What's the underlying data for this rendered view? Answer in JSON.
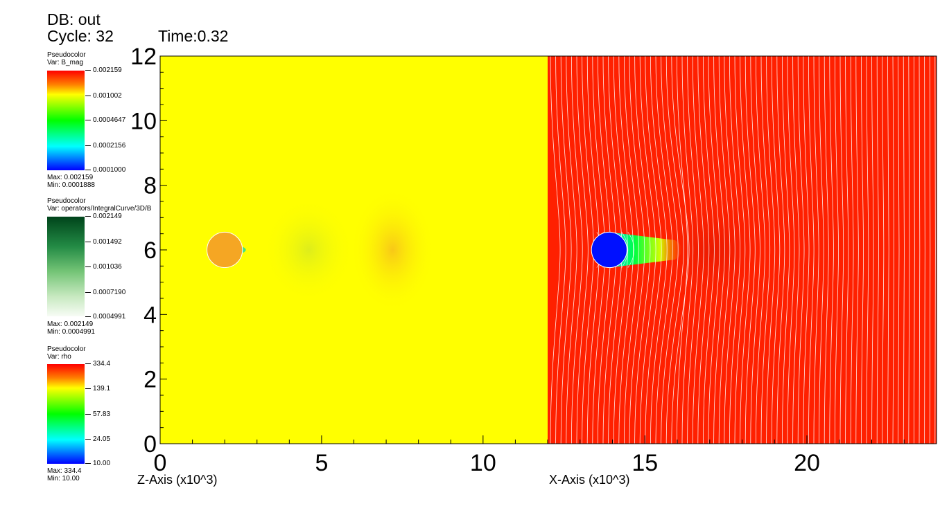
{
  "header": {
    "db": "DB: out",
    "cycle": "Cycle: 32",
    "time": "Time:0.32"
  },
  "legends": [
    {
      "title": "Pseudocolor",
      "var": "Var: B_mag",
      "ticks": [
        "0.002159",
        "0.001002",
        "0.0004647",
        "0.0002156",
        "0.0001000"
      ],
      "max": "Max:  0.002159",
      "min": "Min:  0.0001888",
      "colormap": "hot"
    },
    {
      "title": "Pseudocolor",
      "var": "Var: operators/IntegralCurve/3D/B",
      "ticks": [
        "0.002149",
        "0.001492",
        "0.001036",
        "0.0007190",
        "0.0004991"
      ],
      "max": "Max:  0.002149",
      "min": "Min:  0.0004991",
      "colormap": "greens"
    },
    {
      "title": "Pseudocolor",
      "var": "Var: rho",
      "ticks": [
        "334.4",
        "139.1",
        "57.83",
        "24.05",
        "10.00"
      ],
      "max": "Max:  334.4",
      "min": "Min:  10.00",
      "colormap": "hot"
    }
  ],
  "chart_data": {
    "type": "heatmap",
    "y_ticks": [
      "0",
      "2",
      "4",
      "6",
      "8",
      "10",
      "12"
    ],
    "ylim": [
      0,
      12
    ],
    "panels": [
      {
        "name": "left-panel",
        "xlabel": "Z-Axis (x10^3)",
        "x_ticks": [
          "0",
          "5",
          "10"
        ],
        "xlim": [
          0,
          12
        ],
        "variable": "B_mag",
        "background_color": "#ffff00",
        "object": {
          "cx": 2.0,
          "cy": 6.0,
          "r": 0.55,
          "color": "#f5a623"
        }
      },
      {
        "name": "right-panel",
        "xlabel": "X-Axis (x10^3)",
        "x_ticks": [
          "15",
          "20"
        ],
        "xlim": [
          12,
          24
        ],
        "variable": "rho",
        "background_color": "#ff2000",
        "object": {
          "cx": 13.9,
          "cy": 6.0,
          "r": 0.55,
          "color": "#0010ff"
        },
        "streamlines": "vertical integral curves",
        "streamline_color": "#ffffff"
      }
    ]
  }
}
